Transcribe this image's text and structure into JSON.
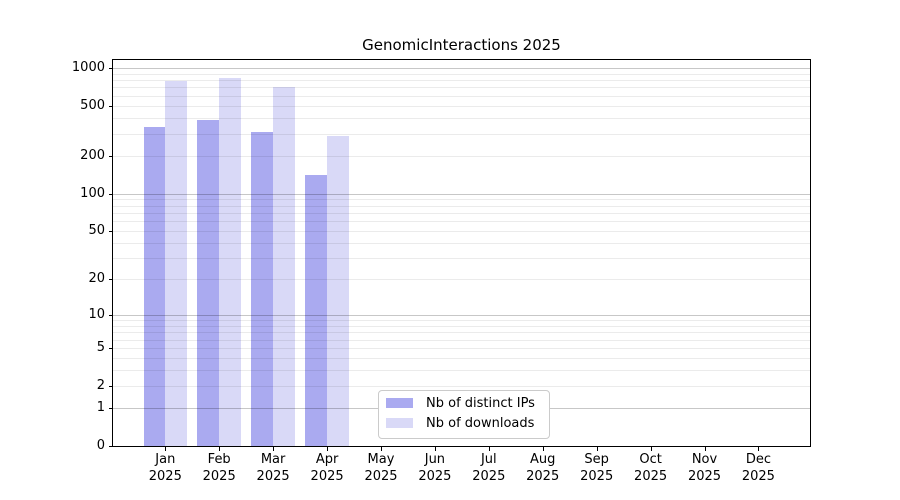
{
  "chart_data": {
    "type": "bar",
    "title": "GenomicInteractions 2025",
    "year_label": "2025",
    "categories": [
      "Jan",
      "Feb",
      "Mar",
      "Apr",
      "May",
      "Jun",
      "Jul",
      "Aug",
      "Sep",
      "Oct",
      "Nov",
      "Dec"
    ],
    "series": [
      {
        "name": "Nb of distinct IPs",
        "color": "#aaaaf0",
        "values": [
          340,
          385,
          310,
          140,
          null,
          null,
          null,
          null,
          null,
          null,
          null,
          null
        ]
      },
      {
        "name": "Nb of downloads",
        "color": "#d9d9f7",
        "values": [
          790,
          840,
          710,
          290,
          null,
          null,
          null,
          null,
          null,
          null,
          null,
          null
        ]
      }
    ],
    "yscale": "log10(x+1)",
    "yticks": [
      0,
      1,
      2,
      5,
      10,
      20,
      50,
      100,
      200,
      500,
      1000
    ],
    "ylim": [
      0,
      1150
    ],
    "xlabel": "",
    "ylabel": "",
    "grid": true,
    "grid_over_bars": true,
    "legend_position": "lower center"
  }
}
